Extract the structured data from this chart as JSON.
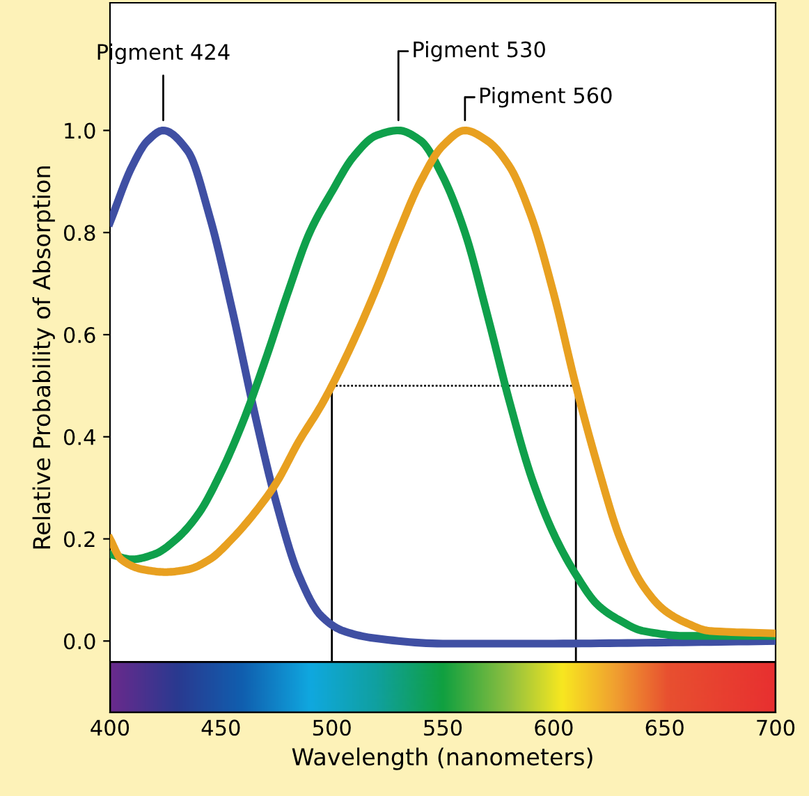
{
  "chart_data": {
    "type": "line",
    "xlabel": "Wavelength (nanometers)",
    "ylabel": "Relative Probability of Absorption",
    "xlim": [
      400,
      700
    ],
    "ylim": [
      -0.14,
      1.25
    ],
    "xticks": [
      400,
      450,
      500,
      550,
      600,
      650,
      700
    ],
    "yticks": [
      {
        "value": 0,
        "label": "0.0"
      },
      {
        "value": 0.2,
        "label": "0.2"
      },
      {
        "value": 0.4,
        "label": "0.4"
      },
      {
        "value": 0.6,
        "label": "0.6"
      },
      {
        "value": 0.8,
        "label": "0.8"
      },
      {
        "value": 1,
        "label": "1.0"
      }
    ],
    "grid": false,
    "legend": false,
    "marker": "none",
    "series": [
      {
        "color": "#3f4fa3",
        "x": [
          400,
          410,
          417,
          424,
          435,
          445,
          455,
          465,
          475,
          485,
          495,
          505,
          520,
          550,
          600,
          650,
          700
        ],
        "values": [
          0.82,
          0.93,
          0.98,
          1.0,
          0.96,
          0.83,
          0.65,
          0.45,
          0.27,
          0.13,
          0.05,
          0.02,
          0.005,
          -0.005,
          -0.005,
          -0.003,
          0.0
        ]
      },
      {
        "color": "#0fa04b",
        "x": [
          400,
          410,
          420,
          430,
          440,
          450,
          460,
          470,
          480,
          490,
          500,
          510,
          520,
          530,
          540,
          550,
          560,
          570,
          580,
          590,
          600,
          610,
          620,
          630,
          640,
          660,
          700
        ],
        "values": [
          0.17,
          0.16,
          0.17,
          0.2,
          0.25,
          0.33,
          0.43,
          0.55,
          0.68,
          0.8,
          0.88,
          0.95,
          0.99,
          1.0,
          0.98,
          0.91,
          0.8,
          0.64,
          0.47,
          0.32,
          0.21,
          0.13,
          0.07,
          0.04,
          0.02,
          0.01,
          0.01
        ]
      },
      {
        "color": "#e8a020",
        "x": [
          400,
          405,
          415,
          425,
          435,
          445,
          455,
          465,
          475,
          485,
          495,
          500,
          510,
          520,
          530,
          540,
          550,
          560,
          570,
          580,
          590,
          600,
          610,
          620,
          630,
          640,
          650,
          660,
          670,
          700
        ],
        "values": [
          0.2,
          0.16,
          0.14,
          0.135,
          0.14,
          0.16,
          0.2,
          0.25,
          0.31,
          0.39,
          0.46,
          0.5,
          0.59,
          0.69,
          0.8,
          0.9,
          0.97,
          1.0,
          0.98,
          0.93,
          0.83,
          0.68,
          0.5,
          0.34,
          0.2,
          0.11,
          0.06,
          0.035,
          0.02,
          0.015
        ]
      },
      {
        "color": "#000000",
        "line_style": "dotted",
        "x": [
          500,
          610
        ],
        "values": [
          0.5,
          0.5
        ]
      },
      {
        "color": "#000000",
        "line_style": "solid",
        "x": [
          500,
          500
        ],
        "values": [
          -0.04,
          0.5
        ]
      },
      {
        "color": "#000000",
        "line_style": "solid",
        "x": [
          610,
          610
        ],
        "values": [
          -0.04,
          0.5
        ]
      }
    ],
    "annotations": [
      {
        "text": "Pigment 424",
        "x": 424,
        "y": 1.0
      },
      {
        "text": "Pigment 530",
        "x": 530,
        "y": 1.0
      },
      {
        "text": "Pigment 560",
        "x": 560,
        "y": 1.0
      }
    ]
  }
}
